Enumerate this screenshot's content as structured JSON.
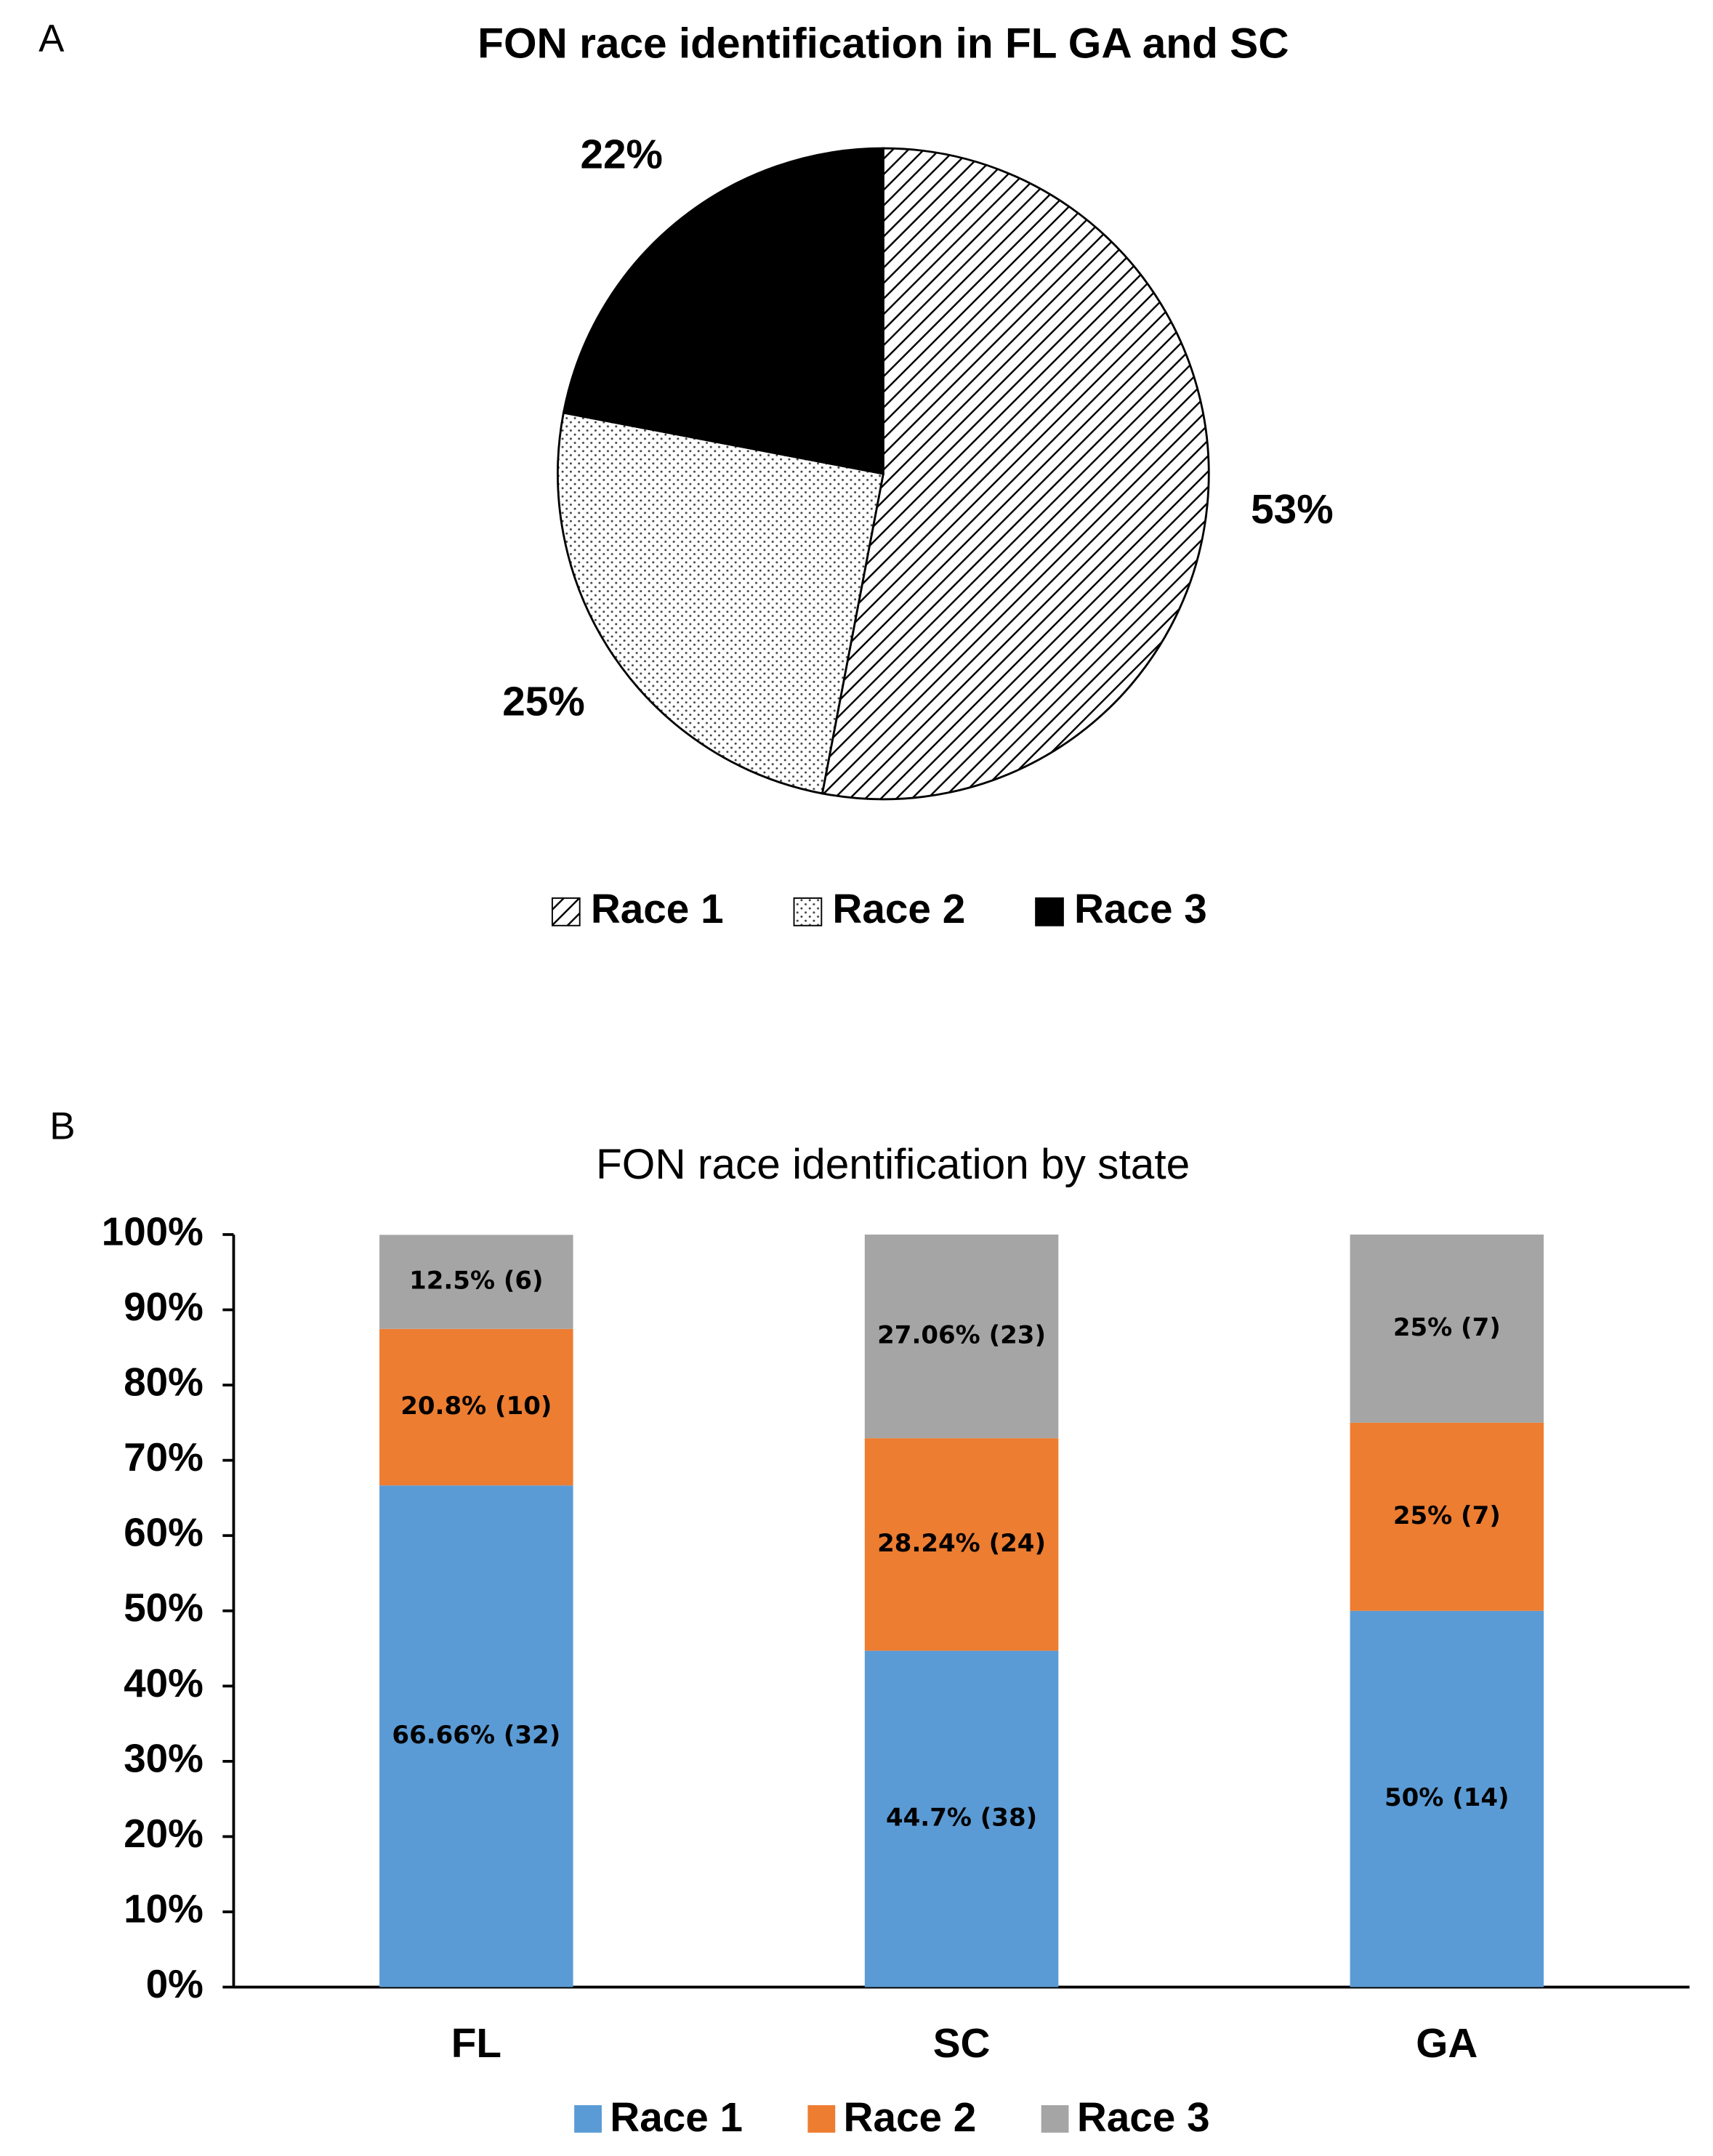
{
  "chart_data": [
    {
      "type": "pie",
      "panel_label": "A",
      "title": "FON race identification in FL GA and SC",
      "categories": [
        "Race 1",
        "Race 2",
        "Race 3"
      ],
      "values": [
        53,
        25,
        22
      ],
      "value_labels": [
        "53%",
        "25%",
        "22%"
      ],
      "patterns": [
        "diagonal-hatch",
        "dots",
        "solid"
      ],
      "color": "#000000",
      "legend": "bottom"
    },
    {
      "type": "stacked-bar",
      "panel_label": "B",
      "title": "FON race identification by state",
      "categories": [
        "FL",
        "SC",
        "GA"
      ],
      "series": [
        {
          "name": "Race 1",
          "color": "#5b9bd5",
          "values": [
            66.66,
            44.7,
            50
          ],
          "value_labels": [
            "66.66% (32)",
            "44.7% (38)",
            "50% (14)"
          ]
        },
        {
          "name": "Race 2",
          "color": "#ed7d31",
          "values": [
            20.8,
            28.24,
            25
          ],
          "value_labels": [
            "20.8% (10)",
            "28.24% (24)",
            "25% (7)"
          ]
        },
        {
          "name": "Race 3",
          "color": "#a5a5a5",
          "values": [
            12.5,
            27.06,
            25
          ],
          "value_labels": [
            "12.5% (6)",
            "27.06% (23)",
            "25% (7)"
          ]
        }
      ],
      "ylim": [
        0,
        100
      ],
      "yticks": [
        {
          "value": 0,
          "label": "0%"
        },
        {
          "value": 10,
          "label": "10%"
        },
        {
          "value": 20,
          "label": "20%"
        },
        {
          "value": 30,
          "label": "30%"
        },
        {
          "value": 40,
          "label": "40%"
        },
        {
          "value": 50,
          "label": "50%"
        },
        {
          "value": 60,
          "label": "60%"
        },
        {
          "value": 70,
          "label": "70%"
        },
        {
          "value": 80,
          "label": "80%"
        },
        {
          "value": 90,
          "label": "90%"
        },
        {
          "value": 100,
          "label": "100%"
        }
      ],
      "grid": false,
      "legend": "bottom"
    }
  ]
}
